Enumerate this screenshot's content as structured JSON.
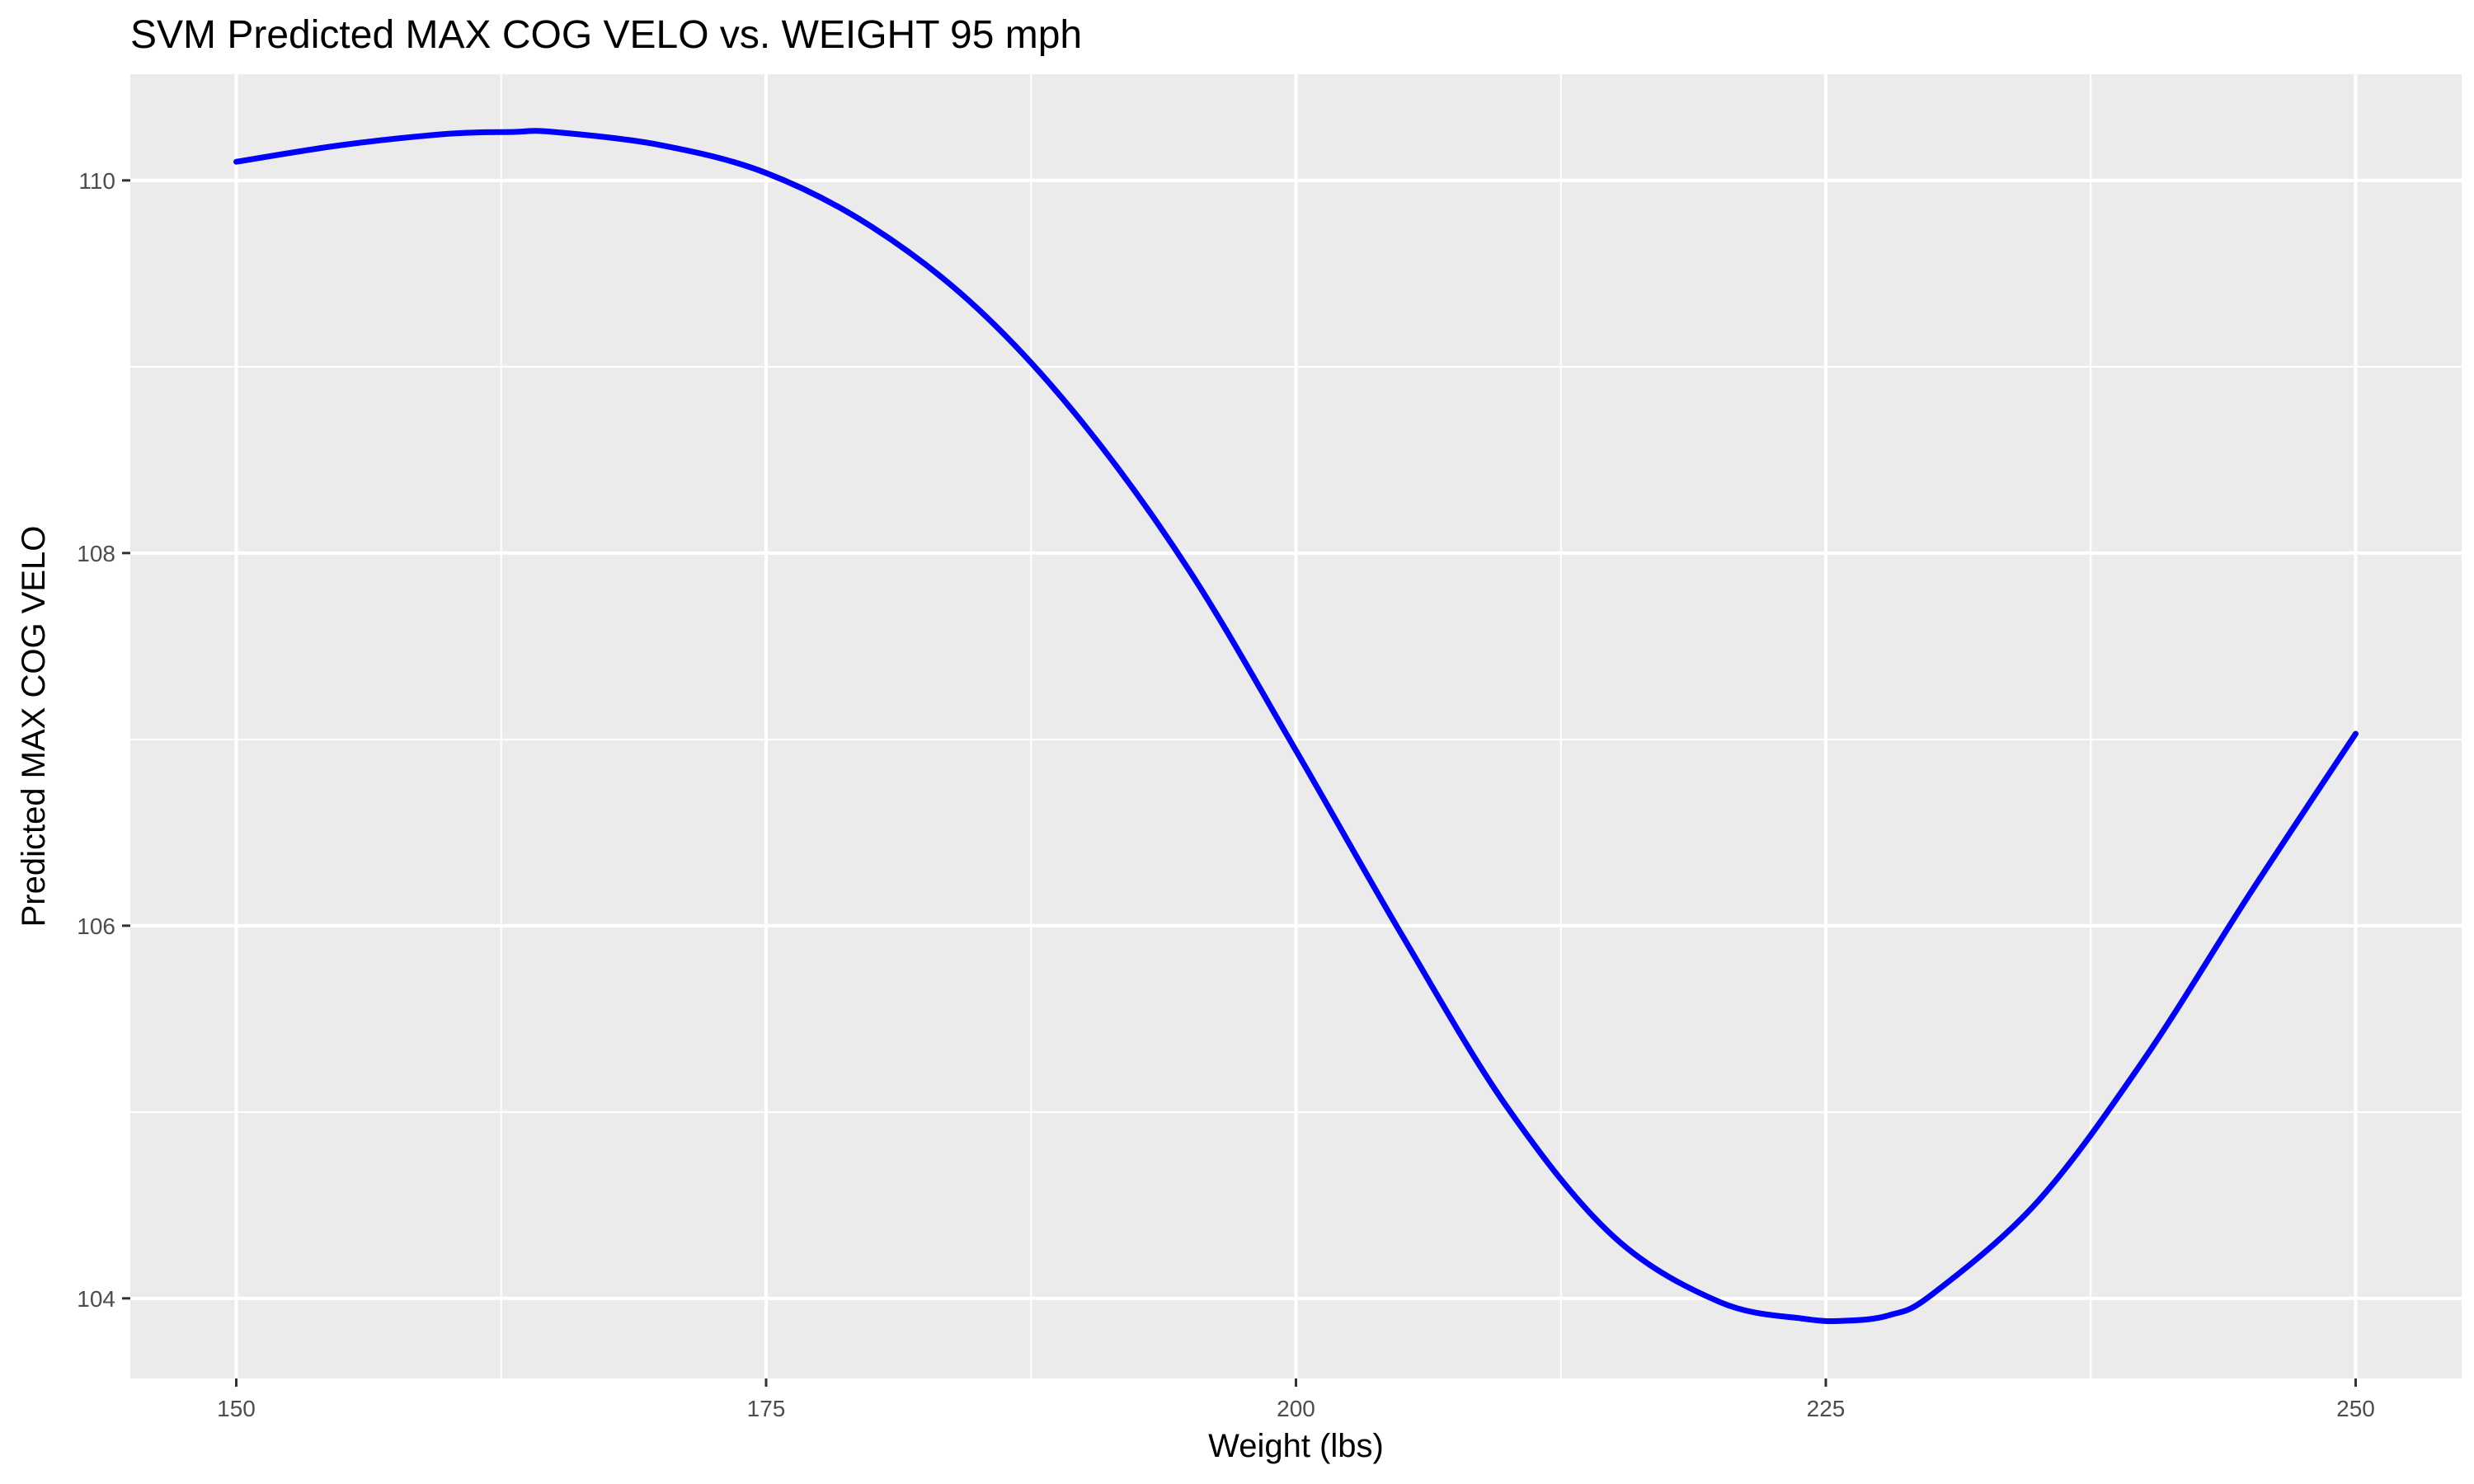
{
  "chart_data": {
    "type": "line",
    "title": "SVM Predicted MAX COG VELO vs. WEIGHT 95 mph",
    "xlabel": "Weight (lbs)",
    "ylabel": "Predicted MAX COG VELO",
    "xlim": [
      145,
      255
    ],
    "ylim": [
      103.57,
      110.57
    ],
    "x_ticks": [
      150,
      175,
      200,
      225,
      250
    ],
    "x_tick_labels": [
      "150",
      "175",
      "200",
      "225",
      "250"
    ],
    "y_ticks": [
      104,
      106,
      108,
      110
    ],
    "y_tick_labels": [
      "104",
      "106",
      "108",
      "110"
    ],
    "grid": true,
    "legend": "none",
    "colors": {
      "line": "#0000ff",
      "panel": "#ebebeb",
      "grid": "#ffffff"
    },
    "series": [
      {
        "x": [
          150,
          155,
          160,
          163,
          165,
          170,
          175,
          180,
          185,
          190,
          195,
          200,
          205,
          210,
          215,
          220,
          224,
          226,
          228,
          230,
          235,
          240,
          245,
          250
        ],
        "values": [
          110.1,
          110.19,
          110.25,
          110.26,
          110.26,
          110.19,
          110.04,
          109.75,
          109.31,
          108.69,
          107.9,
          106.94,
          105.95,
          105.02,
          104.33,
          103.98,
          103.89,
          103.88,
          103.91,
          104.02,
          104.52,
          105.28,
          106.17,
          107.03
        ]
      }
    ]
  }
}
